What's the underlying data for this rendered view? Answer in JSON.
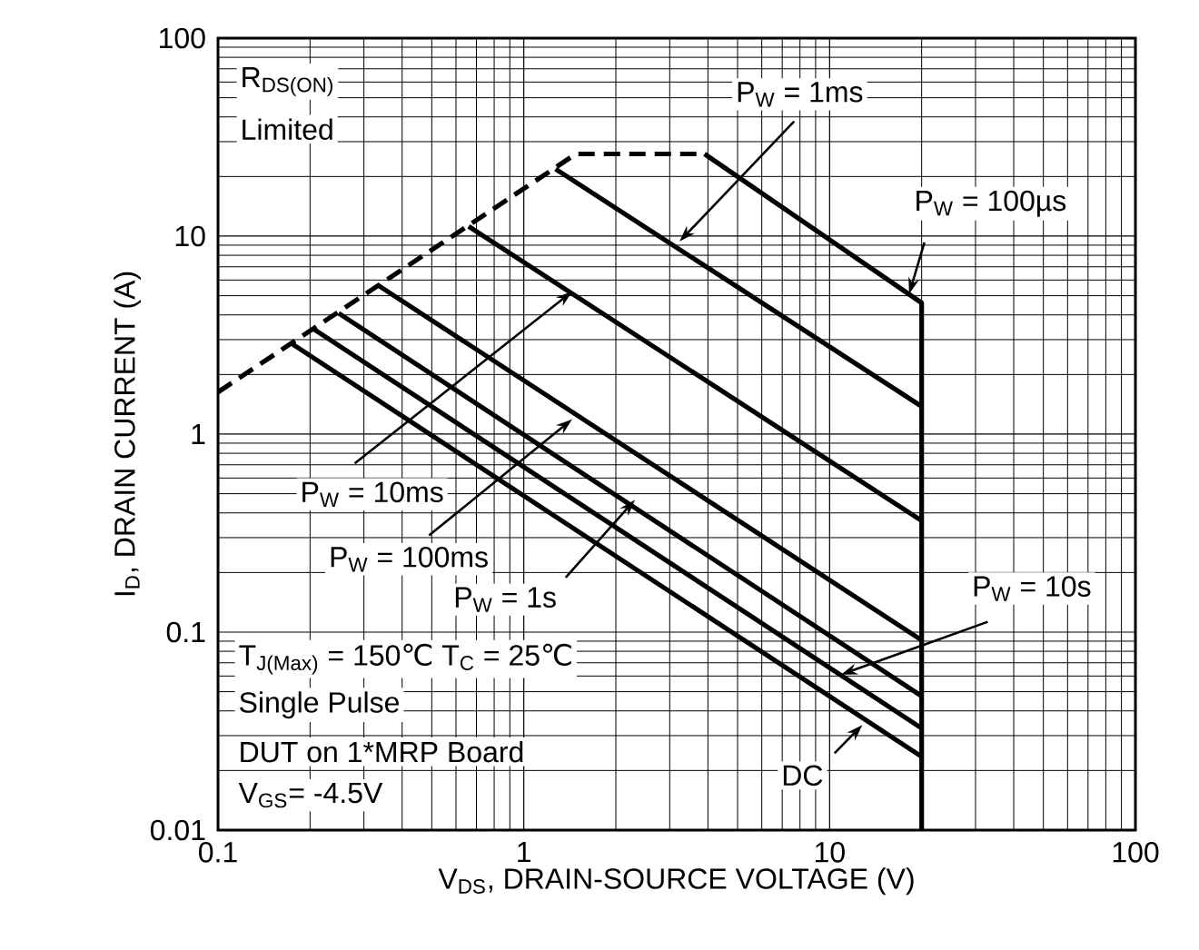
{
  "chart_data": {
    "type": "line",
    "xlabel": "V$_{DS}$, DRAIN-SOURCE VOLTAGE (V)",
    "ylabel": "I$_{D}$, DRAIN CURRENT (A)",
    "log": "xy",
    "grid": true,
    "line_style": "solid",
    "xlim": [
      0.1,
      100
    ],
    "xticks": [
      0.1,
      1,
      10,
      100
    ],
    "ylim": [
      0.01,
      100
    ],
    "yticks": [
      0.01,
      0.1,
      1,
      10,
      100
    ],
    "series": [
      {
        "color": "#000000",
        "line_style": "dashed",
        "x": [
          0.1,
          1.48,
          3.9
        ],
        "values": [
          1.63,
          26,
          26
        ]
      },
      {
        "color": "#000000",
        "x": [
          3.9,
          20,
          20
        ],
        "values": [
          26,
          4.6,
          0.01
        ]
      },
      {
        "color": "#000000",
        "x": [
          1.27,
          20
        ],
        "values": [
          21.8,
          1.38
        ]
      },
      {
        "color": "#000000",
        "x": [
          0.66,
          20
        ],
        "values": [
          11.2,
          0.365
        ]
      },
      {
        "color": "#000000",
        "x": [
          0.333,
          20
        ],
        "values": [
          5.66,
          0.091
        ]
      },
      {
        "color": "#000000",
        "x": [
          0.248,
          20
        ],
        "values": [
          4.08,
          0.0475
        ]
      },
      {
        "color": "#000000",
        "x": [
          0.204,
          20
        ],
        "values": [
          3.42,
          0.0327
        ]
      },
      {
        "color": "#000000",
        "x": [
          0.172,
          20
        ],
        "values": [
          2.9,
          0.0235
        ]
      }
    ],
    "annotations": [
      "R$_{DS(ON)}$",
      "Limited",
      {
        "text": "P$_{W}$ = 1ms",
        "x": 3.23,
        "y": 9.4
      },
      {
        "text": "P$_{W}$ = 100µs",
        "x": 18.2,
        "y": 5.1
      },
      {
        "text": "P$_{W}$ = 10ms",
        "x": 1.44,
        "y": 5.25
      },
      {
        "text": "P$_{W}$ = 100ms",
        "x": 1.44,
        "y": 1.19
      },
      {
        "text": "P$_{W}$ = 1s",
        "x": 2.31,
        "y": 0.466
      },
      {
        "text": "P$_{W}$ = 10s",
        "x": 10.9,
        "y": 0.061
      },
      {
        "text": "DC",
        "x": 12.8,
        "y": 0.034
      },
      "T$_{J(Max)}$ = 150℃  T$_{C}$ = 25℃",
      "Single Pulse",
      "DUT on 1*MRP Board",
      "V$_{GS}$= -4.5V"
    ]
  }
}
